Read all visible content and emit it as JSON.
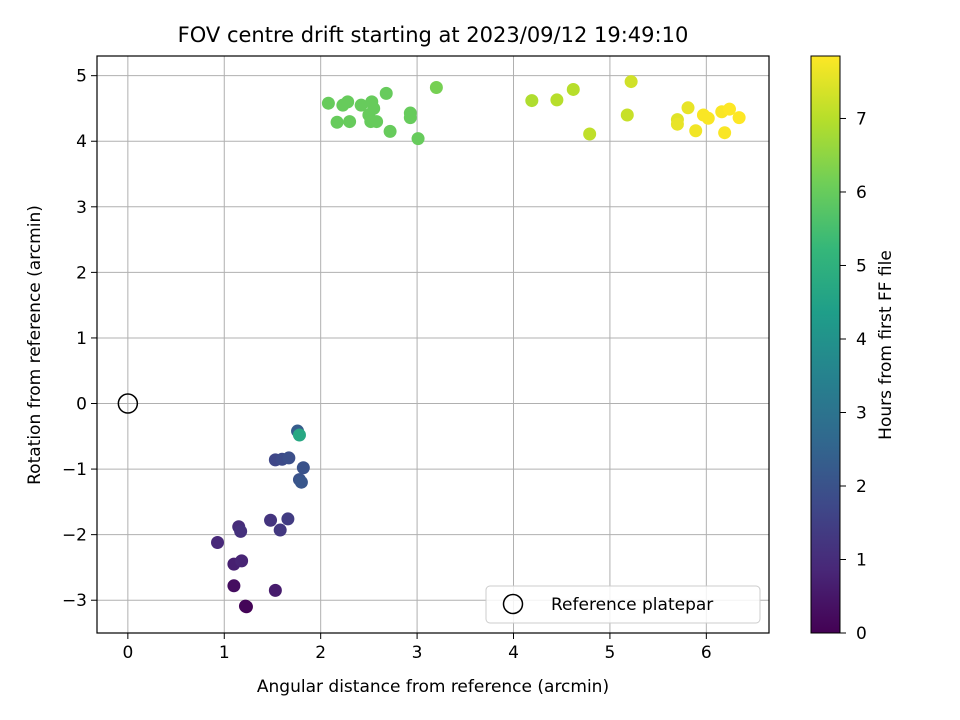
{
  "chart_data": {
    "type": "scatter",
    "title": "FOV centre drift starting at 2023/09/12 19:49:10",
    "xlabel": "Angular distance from reference (arcmin)",
    "ylabel": "Rotation from reference (arcmin)",
    "xlim": [
      -0.32,
      6.65
    ],
    "ylim": [
      -3.5,
      5.3
    ],
    "x_ticks": [
      0,
      1,
      2,
      3,
      4,
      5,
      6
    ],
    "y_ticks": [
      -3,
      -2,
      -1,
      0,
      1,
      2,
      3,
      4,
      5
    ],
    "grid": true,
    "legend": {
      "placement": "bottom-right",
      "entries": [
        "Reference platepar"
      ]
    },
    "reference_point": {
      "x": 0,
      "y": 0
    },
    "colorbar": {
      "label": "Hours from first FF file",
      "range": [
        0,
        7.85
      ],
      "ticks": [
        0,
        1,
        2,
        3,
        4,
        5,
        6,
        7
      ],
      "colormap": "viridis"
    },
    "points": [
      {
        "x": 1.23,
        "y": -3.1,
        "h": 0.0
      },
      {
        "x": 1.22,
        "y": -3.09,
        "h": 0.1
      },
      {
        "x": 1.1,
        "y": -2.78,
        "h": 0.3
      },
      {
        "x": 1.53,
        "y": -2.85,
        "h": 0.6
      },
      {
        "x": 1.1,
        "y": -2.45,
        "h": 0.7
      },
      {
        "x": 1.18,
        "y": -2.4,
        "h": 0.8
      },
      {
        "x": 0.93,
        "y": -2.12,
        "h": 0.9
      },
      {
        "x": 1.15,
        "y": -1.88,
        "h": 1.0
      },
      {
        "x": 1.17,
        "y": -1.95,
        "h": 1.1
      },
      {
        "x": 1.48,
        "y": -1.78,
        "h": 1.2
      },
      {
        "x": 1.58,
        "y": -1.93,
        "h": 1.3
      },
      {
        "x": 1.66,
        "y": -1.76,
        "h": 1.4
      },
      {
        "x": 1.53,
        "y": -0.86,
        "h": 1.7
      },
      {
        "x": 1.6,
        "y": -0.85,
        "h": 1.8
      },
      {
        "x": 1.67,
        "y": -0.83,
        "h": 1.9
      },
      {
        "x": 1.82,
        "y": -0.98,
        "h": 2.0
      },
      {
        "x": 1.78,
        "y": -1.16,
        "h": 2.0
      },
      {
        "x": 1.8,
        "y": -1.2,
        "h": 2.1
      },
      {
        "x": 1.76,
        "y": -0.42,
        "h": 2.3
      },
      {
        "x": 1.78,
        "y": -0.48,
        "h": 4.7
      },
      {
        "x": 2.08,
        "y": 4.58,
        "h": 6.0
      },
      {
        "x": 2.17,
        "y": 4.29,
        "h": 6.0
      },
      {
        "x": 2.23,
        "y": 4.55,
        "h": 6.0
      },
      {
        "x": 2.28,
        "y": 4.6,
        "h": 6.0
      },
      {
        "x": 2.3,
        "y": 4.3,
        "h": 6.0
      },
      {
        "x": 2.42,
        "y": 4.55,
        "h": 6.0
      },
      {
        "x": 2.5,
        "y": 4.4,
        "h": 6.0
      },
      {
        "x": 2.53,
        "y": 4.6,
        "h": 6.0
      },
      {
        "x": 2.55,
        "y": 4.5,
        "h": 6.0
      },
      {
        "x": 2.52,
        "y": 4.3,
        "h": 6.0
      },
      {
        "x": 2.58,
        "y": 4.3,
        "h": 6.0
      },
      {
        "x": 2.68,
        "y": 4.73,
        "h": 6.0
      },
      {
        "x": 2.72,
        "y": 4.15,
        "h": 6.0
      },
      {
        "x": 2.93,
        "y": 4.43,
        "h": 6.0
      },
      {
        "x": 2.93,
        "y": 4.36,
        "h": 6.0
      },
      {
        "x": 3.01,
        "y": 4.04,
        "h": 6.0
      },
      {
        "x": 3.2,
        "y": 4.82,
        "h": 6.2
      },
      {
        "x": 4.19,
        "y": 4.62,
        "h": 6.9
      },
      {
        "x": 4.45,
        "y": 4.63,
        "h": 7.0
      },
      {
        "x": 4.62,
        "y": 4.79,
        "h": 7.0
      },
      {
        "x": 4.79,
        "y": 4.11,
        "h": 7.1
      },
      {
        "x": 5.18,
        "y": 4.4,
        "h": 7.2
      },
      {
        "x": 5.22,
        "y": 4.91,
        "h": 7.3
      },
      {
        "x": 5.7,
        "y": 4.33,
        "h": 7.5
      },
      {
        "x": 5.7,
        "y": 4.26,
        "h": 7.6
      },
      {
        "x": 5.81,
        "y": 4.51,
        "h": 7.6
      },
      {
        "x": 5.89,
        "y": 4.16,
        "h": 7.7
      },
      {
        "x": 5.97,
        "y": 4.4,
        "h": 7.8
      },
      {
        "x": 6.02,
        "y": 4.35,
        "h": 7.8
      },
      {
        "x": 6.16,
        "y": 4.45,
        "h": 7.8
      },
      {
        "x": 6.19,
        "y": 4.13,
        "h": 7.8
      },
      {
        "x": 6.24,
        "y": 4.49,
        "h": 7.85
      },
      {
        "x": 6.34,
        "y": 4.36,
        "h": 7.85
      }
    ]
  },
  "colors": {
    "grid": "#b0b0b0",
    "axes": "#000000",
    "legend_border": "#cccccc",
    "viridis_stops": [
      "#440154",
      "#482878",
      "#3e4989",
      "#31688e",
      "#26828e",
      "#1f9e89",
      "#35b779",
      "#6ece58",
      "#b5de2b",
      "#fde725"
    ]
  }
}
